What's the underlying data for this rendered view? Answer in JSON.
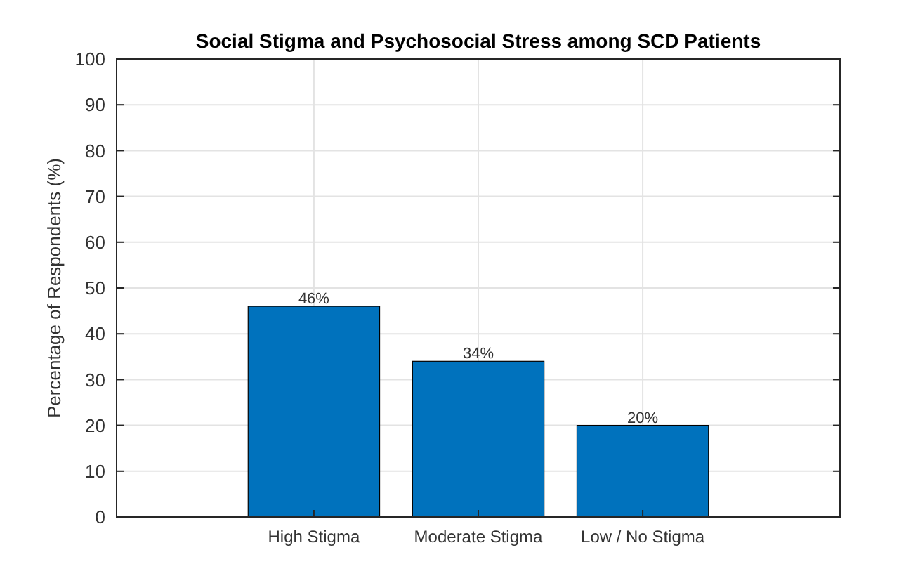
{
  "chart_data": {
    "type": "bar",
    "title": "Social Stigma and Psychosocial Stress among SCD Patients",
    "ylabel": "Percentage of Respondents (%)",
    "categories": [
      "High Stigma",
      "Moderate Stigma",
      "Low / No Stigma"
    ],
    "values": [
      46,
      34,
      20
    ],
    "value_labels": [
      "46%",
      "34%",
      "20%"
    ],
    "color": "#0072bd",
    "ylim": [
      0,
      100
    ],
    "yticks": [
      0,
      10,
      20,
      30,
      40,
      50,
      60,
      70,
      80,
      90,
      100
    ],
    "grid": true
  }
}
